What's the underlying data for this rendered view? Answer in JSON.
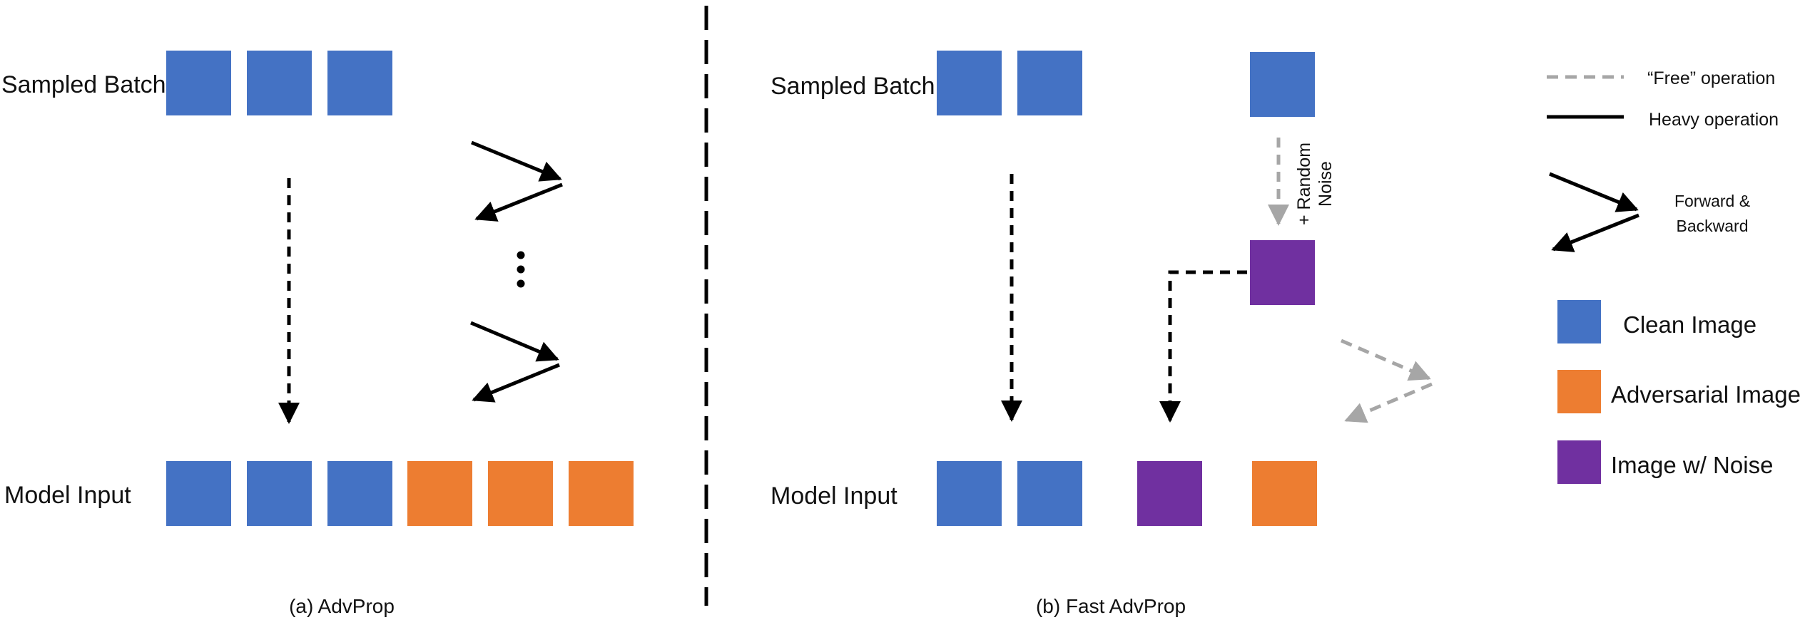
{
  "colors": {
    "clean": "#4472c4",
    "adversarial": "#ed7d31",
    "noise": "#7030a0",
    "heavy": "#000000",
    "free": "#a6a6a6"
  },
  "panel_a": {
    "sampled_batch_label": "Sampled Batch",
    "model_input_label": "Model Input",
    "caption": "(a) AdvProp",
    "sampled_batch": [
      "clean",
      "clean",
      "clean"
    ],
    "model_input": [
      "clean",
      "clean",
      "clean",
      "adversarial",
      "adversarial",
      "adversarial"
    ],
    "ellipsis": "⋮"
  },
  "panel_b": {
    "sampled_batch_label": "Sampled Batch",
    "model_input_label": "Model Input",
    "caption": "(b) Fast AdvProp",
    "noise_label_line1": "+ Random",
    "noise_label_line2": "Noise",
    "sampled_batch": [
      "clean",
      "clean",
      "clean"
    ],
    "noisy": [
      "noise"
    ],
    "model_input": [
      "clean",
      "clean",
      "noise",
      "adversarial"
    ]
  },
  "legend": {
    "free_op": "“Free” operation",
    "heavy_op": "Heavy operation",
    "forward_backward_line1": "Forward &",
    "forward_backward_line2": "Backward",
    "clean": "Clean Image",
    "adversarial": "Adversarial Image",
    "noise": "Image w/ Noise"
  }
}
